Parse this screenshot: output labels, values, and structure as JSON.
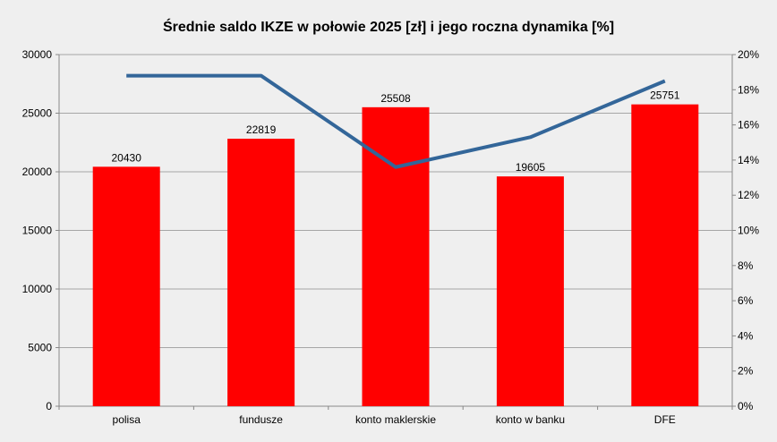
{
  "chart_data": {
    "type": "bar+line",
    "title": "Średnie saldo IKZE w połowie 2025 [zł] i jego roczna dynamika [%]",
    "categories": [
      "polisa",
      "fundusze",
      "konto maklerskie",
      "konto w banku",
      "DFE"
    ],
    "series": [
      {
        "type": "bar",
        "axis": "left",
        "values": [
          20430,
          22819,
          25508,
          19605,
          25751
        ],
        "color": "#ff0000",
        "data_labels": [
          "20430",
          "22819",
          "25508",
          "19605",
          "25751"
        ]
      },
      {
        "type": "line",
        "axis": "right",
        "values": [
          18.8,
          18.8,
          13.6,
          15.3,
          18.5
        ],
        "color": "#336699"
      }
    ],
    "y_left": {
      "min": 0,
      "max": 30000,
      "ticks": [
        "0",
        "5000",
        "10000",
        "15000",
        "20000",
        "25000",
        "30000"
      ]
    },
    "y_right": {
      "min": 0,
      "max": 20,
      "ticks": [
        "0%",
        "2%",
        "4%",
        "6%",
        "8%",
        "10%",
        "12%",
        "14%",
        "16%",
        "18%",
        "20%"
      ]
    },
    "grid": true,
    "legend": "none"
  }
}
